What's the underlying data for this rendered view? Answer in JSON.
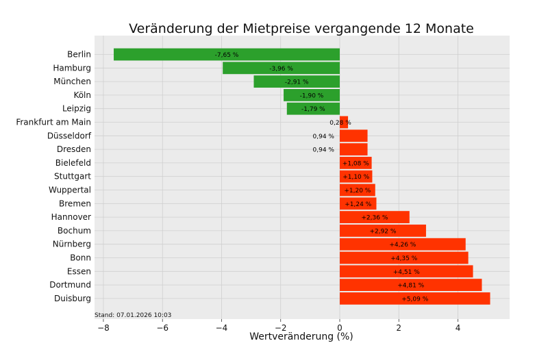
{
  "chart_data": {
    "type": "bar",
    "orientation": "horizontal",
    "title": "Veränderung der Mietpreise vergangende 12 Monate",
    "xlabel": "Wertveränderung (%)",
    "ylabel": "",
    "xlim": [
      -8.3,
      5.75
    ],
    "xticks": [
      -8,
      -6,
      -4,
      -2,
      0,
      2,
      4
    ],
    "xtick_labels": [
      "−8",
      "−6",
      "−4",
      "−2",
      "0",
      "2",
      "4"
    ],
    "grid": true,
    "legend": "none",
    "colors": {
      "negative": "#2ca02c",
      "positive": "#ff3300",
      "background": "#ebebeb"
    },
    "categories": [
      "Berlin",
      "Hamburg",
      "München",
      "Köln",
      "Leipzig",
      "Frankfurt am Main",
      "Düsseldorf",
      "Dresden",
      "Bielefeld",
      "Stuttgart",
      "Wuppertal",
      "Bremen",
      "Hannover",
      "Bochum",
      "Nürnberg",
      "Bonn",
      "Essen",
      "Dortmund",
      "Duisburg"
    ],
    "values": [
      -7.65,
      -3.96,
      -2.91,
      -1.9,
      -1.79,
      0.28,
      0.94,
      0.94,
      1.08,
      1.1,
      1.2,
      1.24,
      2.36,
      2.92,
      4.26,
      4.35,
      4.51,
      4.81,
      5.09
    ],
    "data_labels": [
      "-7,65 %",
      "-3,96 %",
      "-2,91 %",
      "-1,90 %",
      "-1,79 %",
      "0,28 %",
      "0,94 %",
      "0,94 %",
      "+1,08 %",
      "+1,10 %",
      "+1,20 %",
      "+1,24 %",
      "+2,36 %",
      "+2,92 %",
      "+4,26 %",
      "+4,35 %",
      "+4,51 %",
      "+4,81 %",
      "+5,09 %"
    ],
    "annotation": "Stand: 07.01.2026 10:03"
  }
}
